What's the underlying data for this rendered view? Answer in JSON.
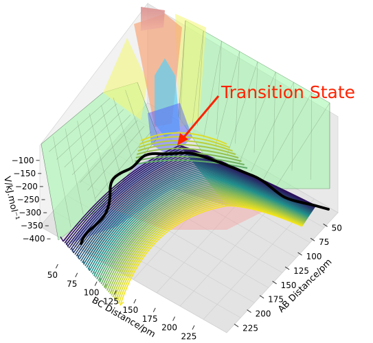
{
  "chart_data": {
    "type": "surface3d",
    "annotation": "Transition State",
    "xlabel": "AB Distance/pm",
    "ylabel": "BC Distance/pm",
    "zlabel": "V/kJ.mol⁻¹",
    "x_ticks": [
      50,
      75,
      100,
      125,
      150,
      175,
      200,
      225
    ],
    "y_ticks": [
      50,
      75,
      100,
      125,
      150,
      175,
      200,
      225
    ],
    "z_ticks": [
      -100,
      -150,
      -200,
      -250,
      -300,
      -350,
      -400
    ],
    "x_tick_labels": [
      "50",
      "75",
      "100",
      "125",
      "150",
      "175",
      "200",
      "225"
    ],
    "y_tick_labels": [
      "50",
      "75",
      "100",
      "125",
      "150",
      "175",
      "200",
      "225"
    ],
    "z_tick_labels": [
      "−100",
      "−150",
      "−200",
      "−250",
      "−300",
      "−350",
      "−400"
    ],
    "xlim": [
      40,
      240
    ],
    "ylim": [
      40,
      240
    ],
    "zlim": [
      -410,
      -90
    ],
    "transition_state": {
      "ab": 93,
      "bc": 93,
      "v": -250
    },
    "colors": {
      "annotation": "#ff2200",
      "surface_green": "#9ff5a8",
      "surface_yellow": "#f3f77a",
      "surface_orange": "#f8a070",
      "surface_cyan": "#5ad0f5",
      "surface_blue": "#4b55ff",
      "contour_low": "#2b0a5a",
      "contour_mid": "#20908c",
      "contour_high": "#f3e51c",
      "trajectory": "#000000"
    }
  }
}
